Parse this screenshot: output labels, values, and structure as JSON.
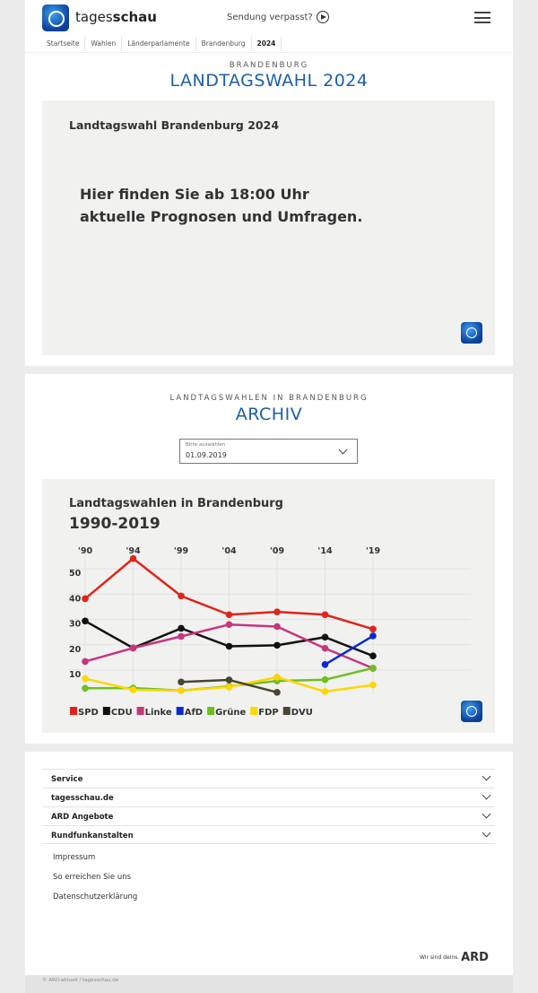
{
  "header": {
    "brand_light": "tages",
    "brand_bold": "schau",
    "missed": "Sendung verpasst?"
  },
  "breadcrumb": [
    "Startseite",
    "Wahlen",
    "Länderparlamente",
    "Brandenburg",
    "2024"
  ],
  "election": {
    "kicker": "BRANDENBURG",
    "title": "LANDTAGSWAHL 2024",
    "panel_title": "Landtagswahl Brandenburg 2024",
    "message_line1": "Hier finden Sie ab 18:00 Uhr",
    "message_line2": "aktuelle Prognosen und Umfragen."
  },
  "archive": {
    "kicker": "LANDTAGSWAHLEN IN BRANDENBURG",
    "title": "ARCHIV",
    "select_label": "Bitte auswählen",
    "select_value": "01.09.2019"
  },
  "chart_data": {
    "type": "line",
    "title": "Landtagswahlen in Brandenburg",
    "subtitle": "1990-2019",
    "categories": [
      "'90",
      "'94",
      "'99",
      "'04",
      "'09",
      "'14",
      "'19"
    ],
    "yticks": [
      10,
      20,
      30,
      40,
      50
    ],
    "ylim": [
      0,
      55
    ],
    "grid": true,
    "legend": "bottom-left",
    "series": [
      {
        "name": "SPD",
        "color": "#e2231a",
        "values": [
          38.2,
          54.1,
          39.3,
          31.9,
          33.0,
          31.9,
          26.2
        ]
      },
      {
        "name": "CDU",
        "color": "#111111",
        "values": [
          29.4,
          18.7,
          26.5,
          19.4,
          19.8,
          23.0,
          15.6
        ]
      },
      {
        "name": "Linke",
        "color": "#c8357f",
        "values": [
          13.4,
          18.7,
          23.3,
          28.0,
          27.2,
          18.6,
          10.7
        ]
      },
      {
        "name": "AfD",
        "color": "#0a2ad4",
        "values": [
          null,
          null,
          null,
          null,
          null,
          12.2,
          23.5
        ]
      },
      {
        "name": "Grüne",
        "color": "#6fbf1f",
        "values": [
          2.8,
          2.9,
          1.9,
          3.6,
          5.7,
          6.2,
          10.8
        ]
      },
      {
        "name": "FDP",
        "color": "#ffd600",
        "values": [
          6.6,
          2.2,
          1.9,
          3.3,
          7.2,
          1.5,
          4.1
        ]
      },
      {
        "name": "DVU",
        "color": "#4a4431",
        "values": [
          null,
          null,
          5.3,
          6.1,
          1.2,
          null,
          null
        ]
      }
    ]
  },
  "footer": {
    "sections": [
      "Service",
      "tagesschau.de",
      "ARD Angebote",
      "Rundfunkanstalten"
    ],
    "links": [
      "Impressum",
      "So erreichen Sie uns",
      "Datenschutzerklärung"
    ],
    "ard_slogan": "Wir sind deins.",
    "ard_logo": "ARD",
    "copyright": "© ARD-aktuell / tagesschau.de"
  }
}
